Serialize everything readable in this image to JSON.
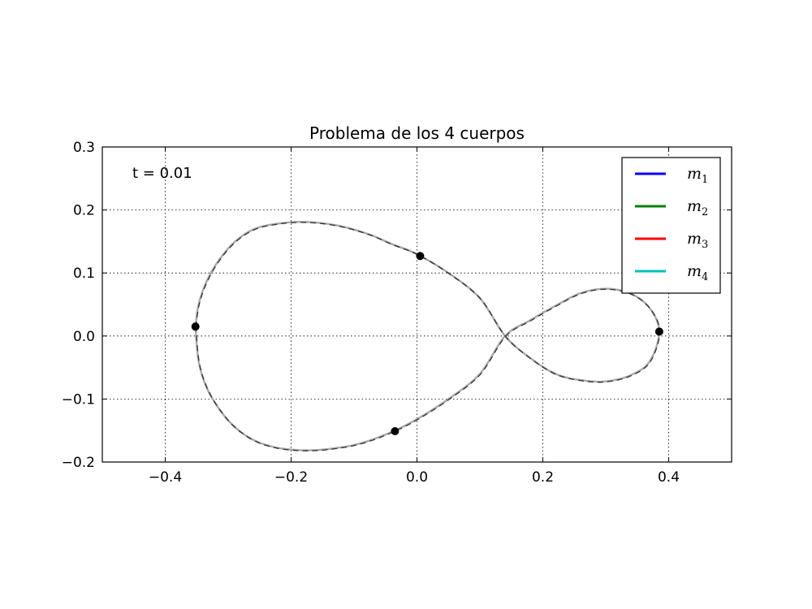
{
  "chart_data": {
    "type": "line",
    "title": "Problema de los 4 cuerpos",
    "xlabel": "",
    "ylabel": "",
    "xlim": [
      -0.5,
      0.5
    ],
    "ylim": [
      -0.2,
      0.3
    ],
    "x_ticks": [
      -0.4,
      -0.2,
      0.0,
      0.2,
      0.4
    ],
    "x_tick_labels": [
      "−0.4",
      "−0.2",
      "0.0",
      "0.2",
      "0.4"
    ],
    "y_ticks": [
      -0.2,
      -0.1,
      0.0,
      0.1,
      0.2,
      0.3
    ],
    "y_tick_labels": [
      "−0.2",
      "−0.1",
      "0.0",
      "0.1",
      "0.2",
      "0.3"
    ],
    "grid": true,
    "legend_position": "top-right",
    "annotation": "t = 0.01",
    "series": [
      {
        "name": "m",
        "sub": "1",
        "color": "#0000ff"
      },
      {
        "name": "m",
        "sub": "2",
        "color": "#008000"
      },
      {
        "name": "m",
        "sub": "3",
        "color": "#ff0000"
      },
      {
        "name": "m",
        "sub": "4",
        "color": "#00bfbf"
      }
    ],
    "trajectory": {
      "x": [
        -0.352,
        -0.347,
        -0.335,
        -0.315,
        -0.289,
        -0.258,
        -0.224,
        -0.19,
        -0.16,
        -0.13,
        -0.1,
        -0.07,
        -0.04,
        0.0,
        0.05,
        0.1,
        0.14,
        0.18,
        0.22,
        0.26,
        0.3,
        0.34,
        0.37,
        0.385,
        0.37,
        0.34,
        0.3,
        0.26,
        0.22,
        0.18,
        0.14,
        0.1,
        0.05,
        0.0,
        -0.035,
        -0.07,
        -0.1,
        -0.13,
        -0.16,
        -0.19,
        -0.224,
        -0.258,
        -0.289,
        -0.315,
        -0.335,
        -0.347,
        -0.352
      ],
      "y": [
        0.015,
        0.05,
        0.085,
        0.12,
        0.15,
        0.17,
        0.178,
        0.181,
        0.18,
        0.176,
        0.169,
        0.159,
        0.146,
        0.13,
        0.1,
        0.06,
        0.0,
        -0.035,
        -0.06,
        -0.07,
        -0.072,
        -0.062,
        -0.04,
        0.007,
        0.044,
        0.067,
        0.075,
        0.068,
        0.048,
        0.025,
        0.0,
        -0.06,
        -0.1,
        -0.132,
        -0.15,
        -0.164,
        -0.173,
        -0.178,
        -0.181,
        -0.181,
        -0.177,
        -0.166,
        -0.145,
        -0.115,
        -0.08,
        -0.04,
        0.015
      ]
    },
    "bodies": [
      {
        "x": -0.352,
        "y": 0.015
      },
      {
        "x": 0.005,
        "y": 0.127
      },
      {
        "x": 0.385,
        "y": 0.007
      },
      {
        "x": -0.035,
        "y": -0.151
      }
    ]
  }
}
